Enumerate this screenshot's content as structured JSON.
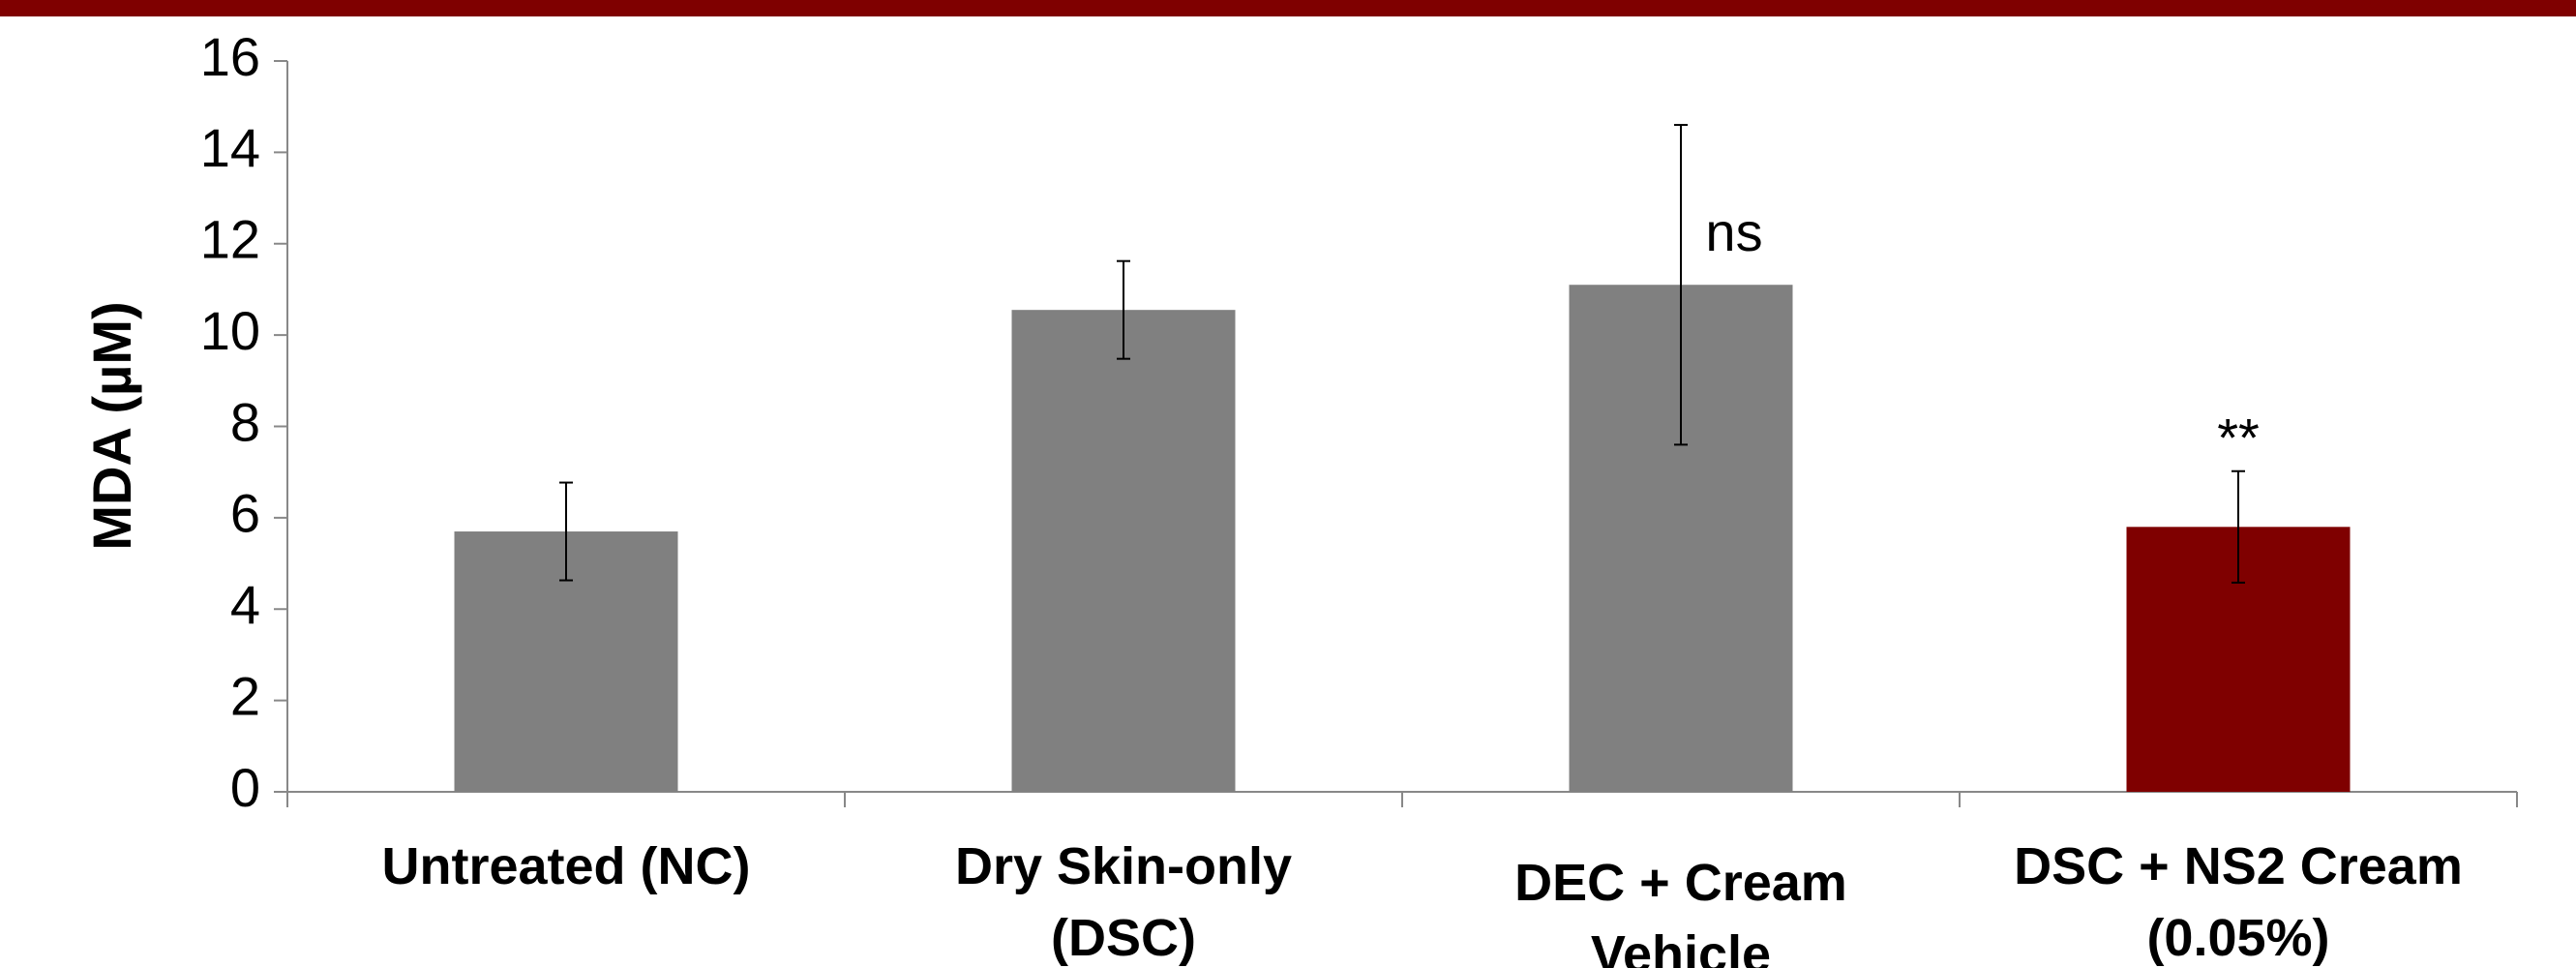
{
  "chart_data": {
    "type": "bar",
    "y_label": "MDA (µM)",
    "categories": [
      "Untreated (NC)",
      "Dry Skin-only (DSC)",
      "DEC + Cream Vehicle",
      "DSC +  NS2 Cream (0.05%)"
    ],
    "values": [
      5.7,
      10.55,
      11.1,
      5.8
    ],
    "errors": [
      1.07,
      1.07,
      3.5,
      1.22
    ],
    "colors": [
      "#808080",
      "#808080",
      "#808080",
      "#7f0000"
    ],
    "annotations": [
      {
        "category": 2,
        "text": "ns"
      },
      {
        "category": 3,
        "text": "**"
      }
    ],
    "ylim": [
      0,
      16
    ],
    "yticks": [
      0,
      2,
      4,
      6,
      8,
      10,
      12,
      14,
      16
    ],
    "grid": false
  }
}
